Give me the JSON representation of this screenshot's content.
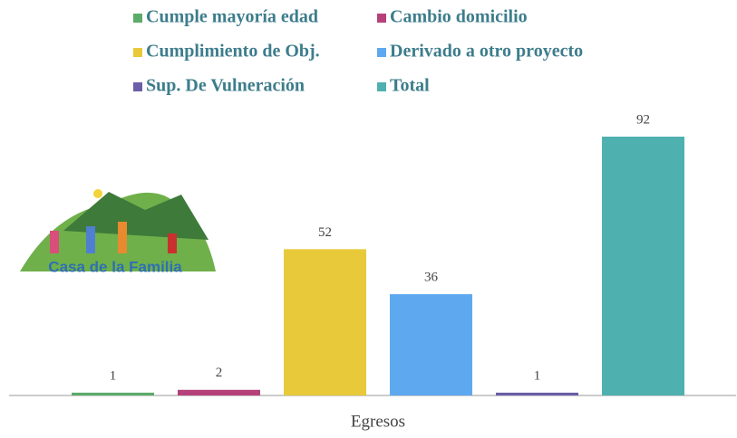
{
  "chart_data": {
    "type": "bar",
    "categories": [
      "Egresos"
    ],
    "series": [
      {
        "name": "Cumple mayoría edad",
        "color": "#5cab6a",
        "values": [
          1
        ]
      },
      {
        "name": "Cambio domicilio",
        "color": "#b5407a",
        "values": [
          2
        ]
      },
      {
        "name": "Cumplimiento de Obj.",
        "color": "#e8c93a",
        "values": [
          52
        ]
      },
      {
        "name": "Derivado a otro proyecto",
        "color": "#5ea8f0",
        "values": [
          36
        ]
      },
      {
        "name": "Sup. De Vulneración",
        "color": "#6a5fa8",
        "values": [
          1
        ]
      },
      {
        "name": "Total",
        "color": "#4fb0b0",
        "values": [
          92
        ]
      }
    ]
  },
  "logo": {
    "title": "Casa de la Familia"
  }
}
